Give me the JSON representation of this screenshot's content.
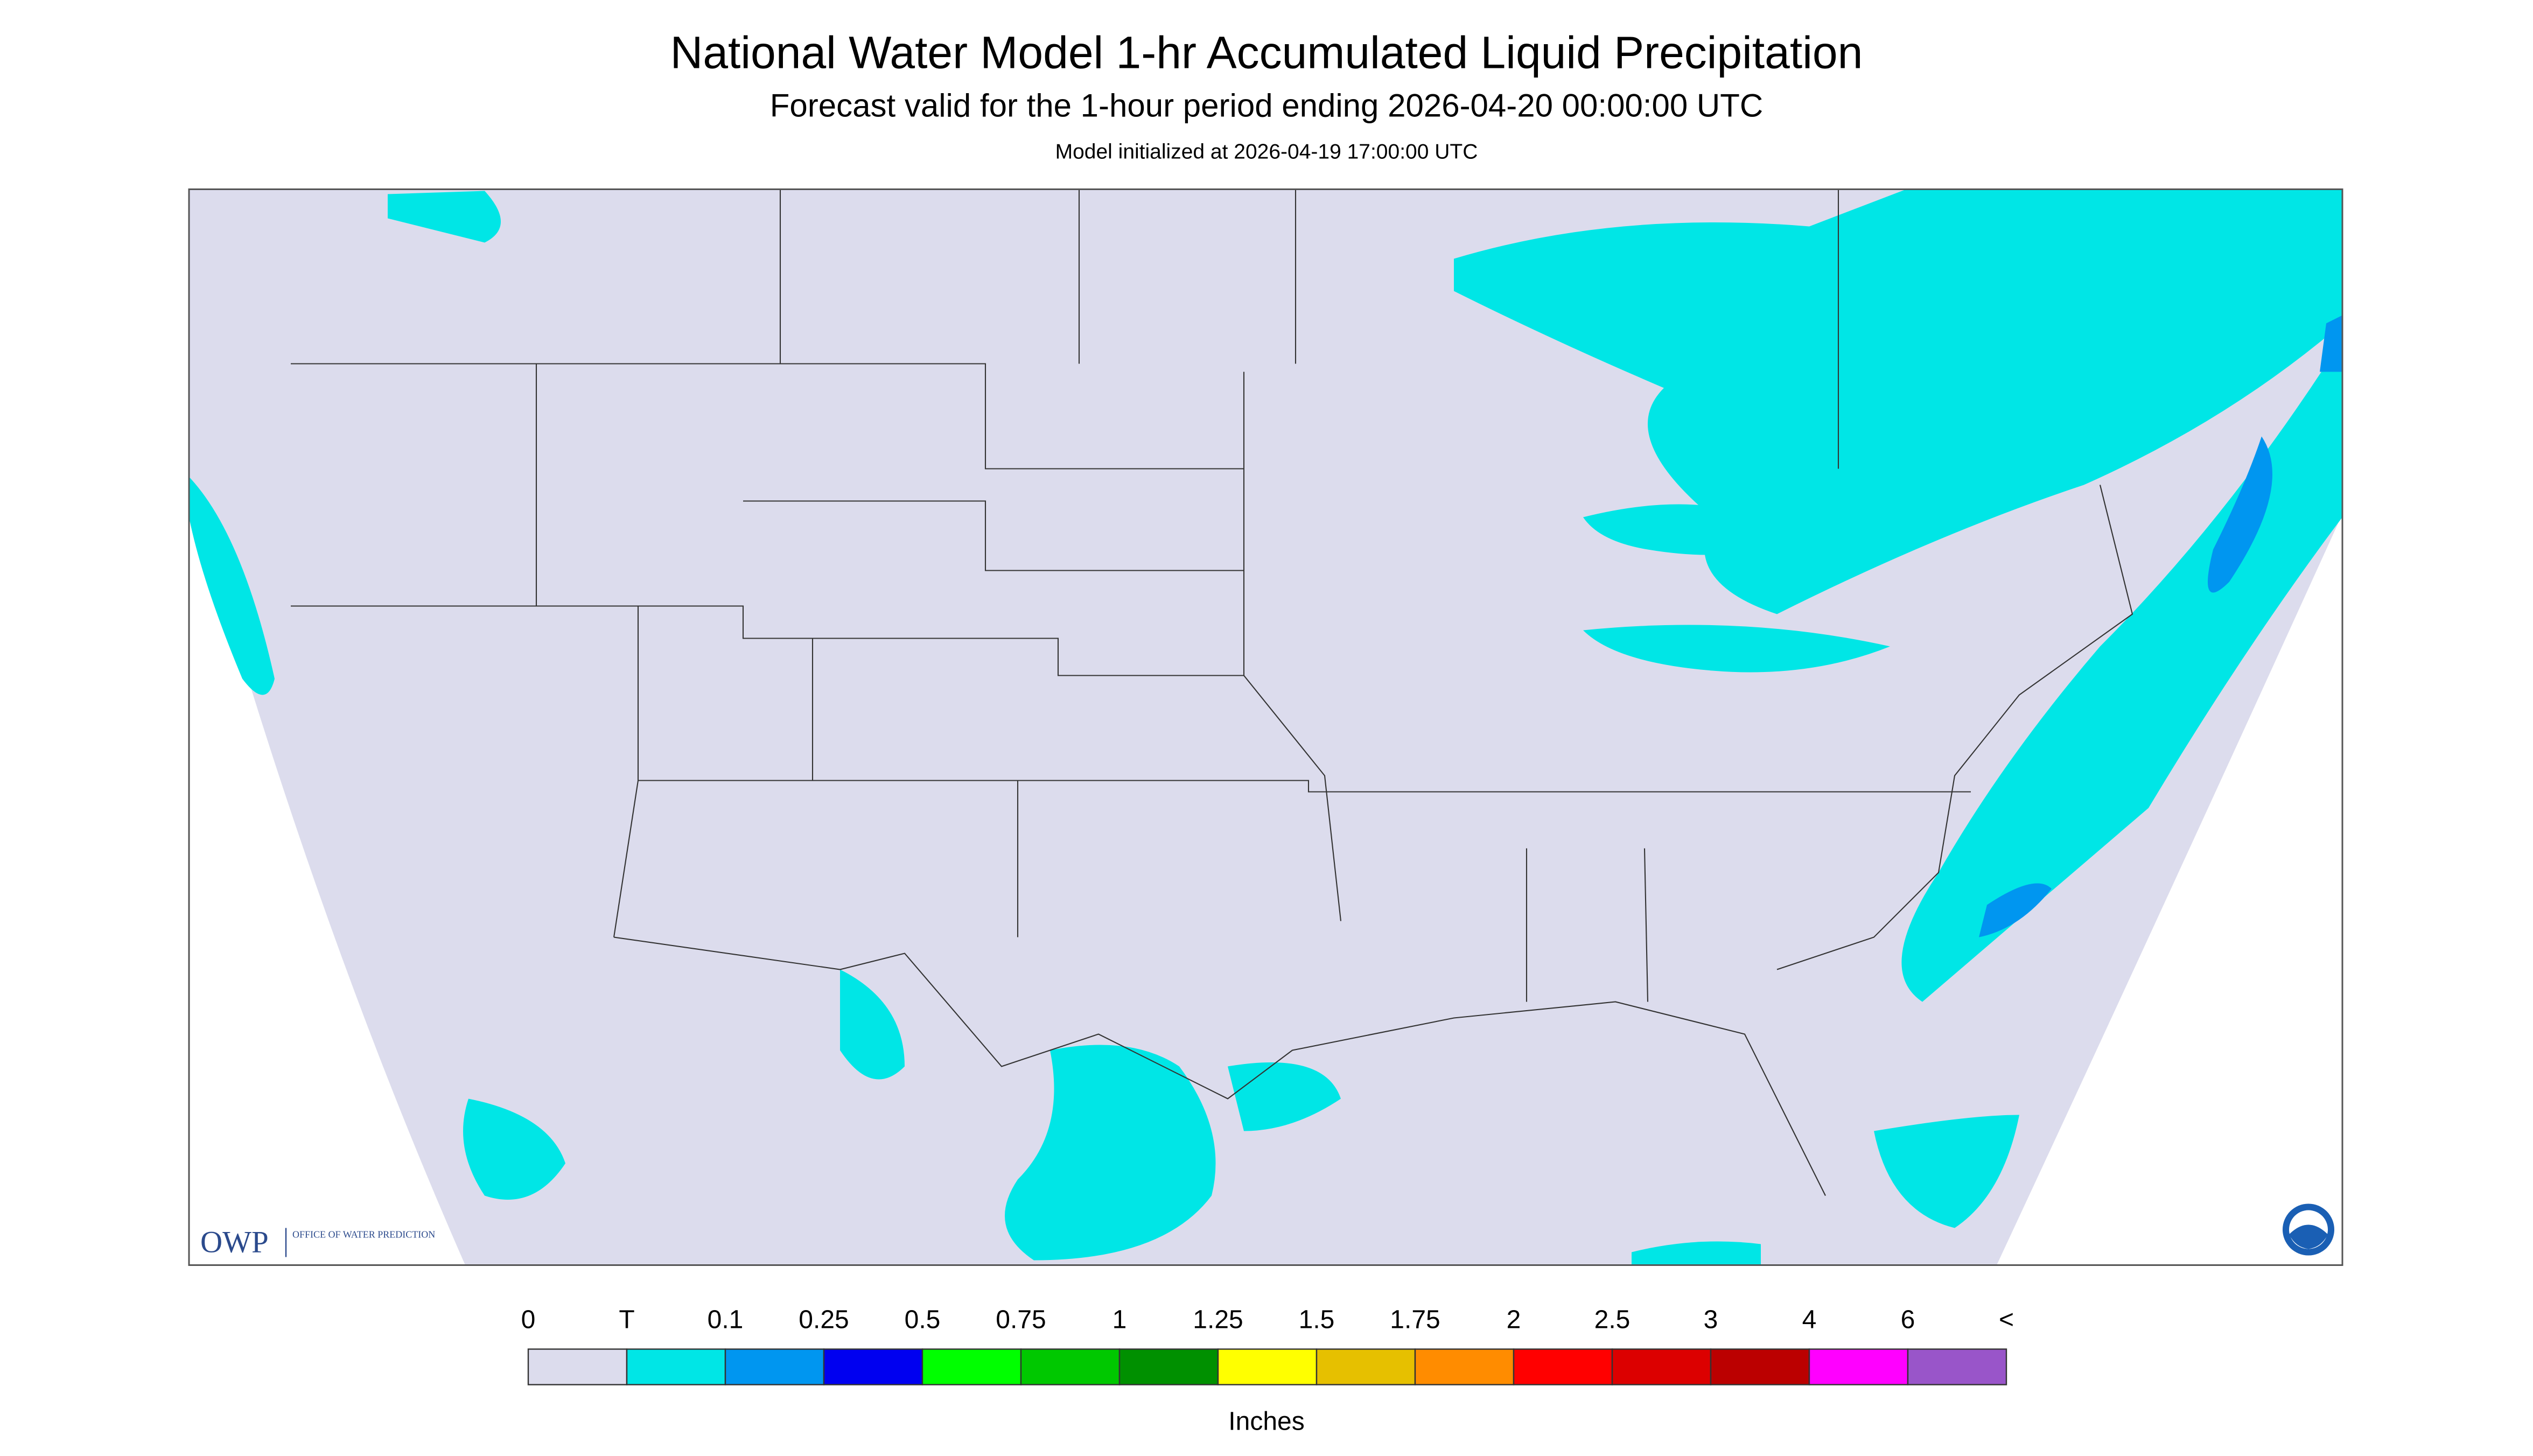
{
  "header": {
    "title": "National Water Model 1-hr Accumulated Liquid Precipitation",
    "subtitle": "Forecast valid for the 1-hour period ending 2026-04-20 00:00:00 UTC",
    "note": "Model initialized at 2026-04-19 17:00:00 UTC"
  },
  "logo": {
    "owp": "OWP",
    "office": "OFFICE OF WATER PREDICTION"
  },
  "legend": {
    "labels": [
      "0",
      "T",
      "0.1",
      "0.25",
      "0.5",
      "0.75",
      "1",
      "1.25",
      "1.5",
      "1.75",
      "2",
      "2.5",
      "3",
      "4",
      "6",
      "<"
    ],
    "colors": [
      "#dcdced",
      "#00e6e6",
      "#0096f0",
      "#0000f0",
      "#00ff00",
      "#00c800",
      "#009000",
      "#ffff00",
      "#e6c000",
      "#ff8c00",
      "#ff0000",
      "#dc0000",
      "#bb0000",
      "#ff00ff",
      "#9955c9"
    ],
    "units": "Inches"
  }
}
